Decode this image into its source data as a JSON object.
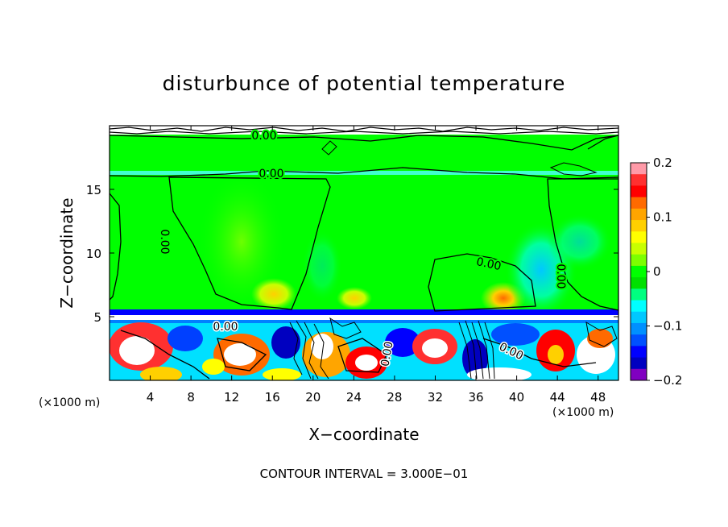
{
  "chart_data": {
    "type": "heatmap",
    "title": "disturbunce of potential temperature",
    "xlabel": "X−coordinate",
    "ylabel": "Z−coordinate",
    "x_unit": "(×1000 m)",
    "z_unit": "(×1000 m)",
    "xlim": [
      0,
      50
    ],
    "ylim": [
      0,
      20
    ],
    "x_ticks": [
      4,
      8,
      12,
      16,
      20,
      24,
      28,
      32,
      36,
      40,
      44,
      48
    ],
    "y_ticks": [
      5,
      10,
      15
    ],
    "colorbar": {
      "range": [
        -0.2,
        0.2
      ],
      "ticks": [
        0.2,
        0.1,
        0,
        -0.1,
        -0.2
      ],
      "tick_labels": [
        "0.2",
        "0.1",
        "0",
        "−0.1",
        "−0.2"
      ],
      "colors": [
        "#ff9aa8",
        "#ff3030",
        "#ff0000",
        "#ff6a00",
        "#ffa500",
        "#ffd000",
        "#ffff00",
        "#c8ff00",
        "#7cff00",
        "#00ff00",
        "#00e000",
        "#00ff80",
        "#00ffff",
        "#00c8ff",
        "#0090ff",
        "#0050ff",
        "#0000ff",
        "#0000c0",
        "#8000c0"
      ]
    },
    "contour_labels": [
      {
        "text": "0.00",
        "x": 19.0,
        "z": 19.3
      },
      {
        "text": "0.00",
        "x": 19.0,
        "z": 16.3
      },
      {
        "text": "0.00",
        "x": 7.5,
        "z": 11.0
      },
      {
        "text": "0.00",
        "x": 35.5,
        "z": 9.1
      },
      {
        "text": "0.00",
        "x": 45.0,
        "z": 9.0
      },
      {
        "text": "0.00",
        "x": 11.5,
        "z": 4.2
      },
      {
        "text": "0.00",
        "x": 28.5,
        "z": 2.3
      },
      {
        "text": "0.00",
        "x": 40.0,
        "z": 2.2
      }
    ],
    "footer": "CONTOUR INTERVAL = 3.000E−01"
  }
}
